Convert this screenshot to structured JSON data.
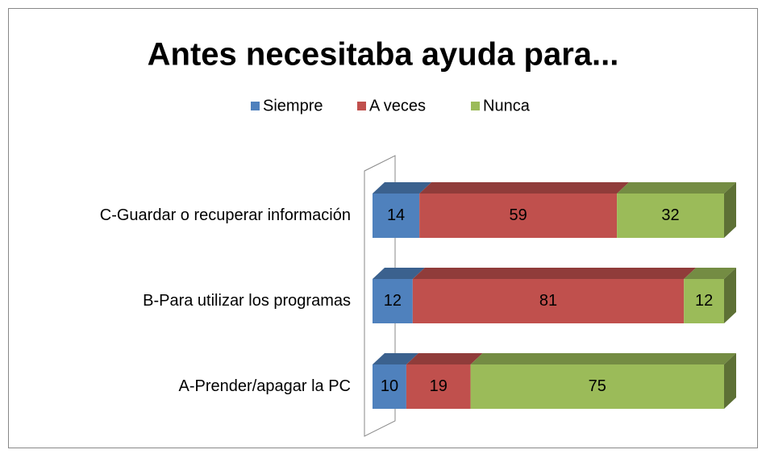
{
  "chart_data": {
    "type": "bar",
    "orientation": "horizontal",
    "stacking": "percent",
    "three_d": true,
    "title": "Antes necesitaba ayuda para...",
    "categories": [
      "A-Prender/apagar la PC",
      "B-Para utilizar los programas",
      "C-Guardar o recuperar información"
    ],
    "series": [
      {
        "name": "Siempre",
        "color": "#4f81bd",
        "values": [
          10,
          12,
          14
        ]
      },
      {
        "name": "A veces",
        "color": "#c0504d",
        "values": [
          19,
          81,
          59
        ]
      },
      {
        "name": "Nunca",
        "color": "#9bbb59",
        "values": [
          75,
          12,
          32
        ]
      }
    ],
    "legend": "top",
    "data_labels": true
  }
}
